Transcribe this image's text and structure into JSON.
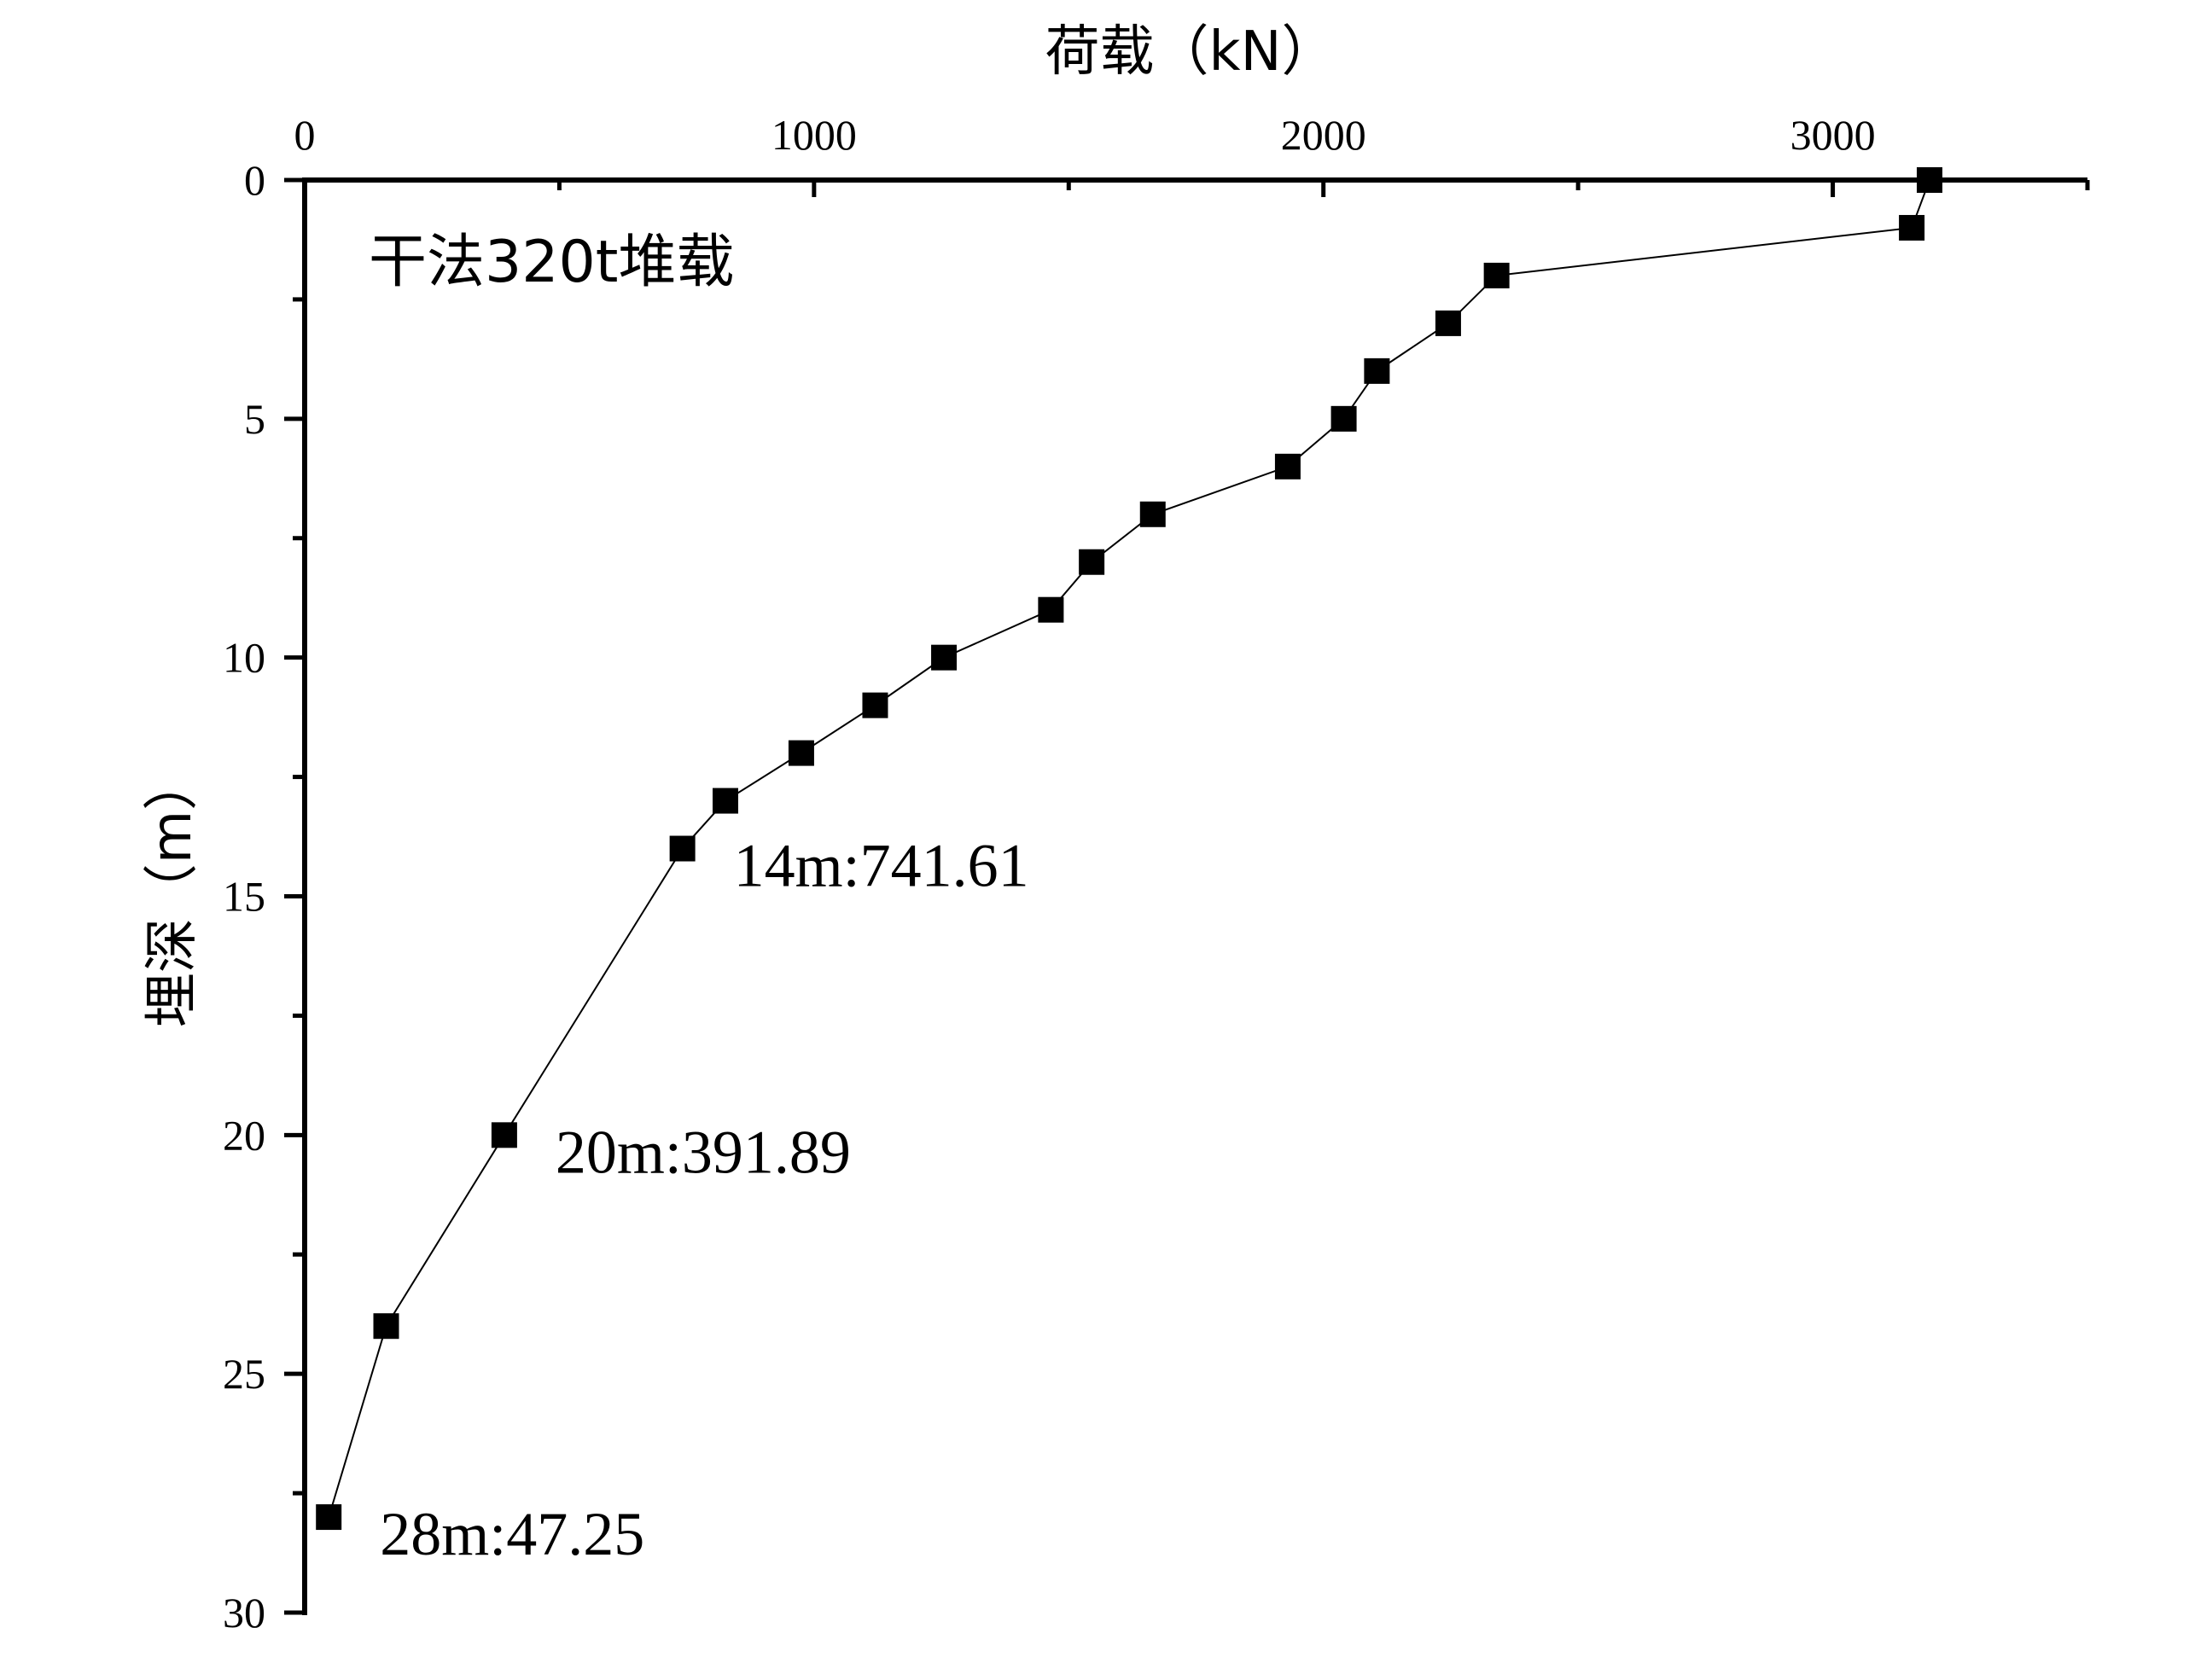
{
  "chart_data": {
    "type": "line",
    "title": "",
    "label": "干法320t堆载",
    "xlabel": "荷载（kN）",
    "ylabel": "埋深（m）",
    "xlim": [
      0,
      3500
    ],
    "ylim": [
      0,
      30
    ],
    "y_inverted": true,
    "x_axis_position": "top",
    "grid": false,
    "legend": "none",
    "x_ticks": [
      0,
      1000,
      2000,
      3000
    ],
    "y_ticks": [
      0,
      5,
      10,
      15,
      20,
      25,
      30
    ],
    "marker": "square",
    "color": "#000000",
    "series": [
      {
        "points": [
          {
            "x": 3190,
            "y": 0
          },
          {
            "x": 3155,
            "y": 1
          },
          {
            "x": 2340,
            "y": 2
          },
          {
            "x": 2245,
            "y": 3
          },
          {
            "x": 2105,
            "y": 4
          },
          {
            "x": 2040,
            "y": 5
          },
          {
            "x": 1930,
            "y": 6
          },
          {
            "x": 1665,
            "y": 7
          },
          {
            "x": 1545,
            "y": 8
          },
          {
            "x": 1465,
            "y": 9
          },
          {
            "x": 1255,
            "y": 10
          },
          {
            "x": 1120,
            "y": 11
          },
          {
            "x": 975,
            "y": 12
          },
          {
            "x": 826,
            "y": 13
          },
          {
            "x": 741.61,
            "y": 14
          },
          {
            "x": 391.89,
            "y": 20
          },
          {
            "x": 160,
            "y": 24
          },
          {
            "x": 47.25,
            "y": 28
          }
        ]
      }
    ],
    "annotations": [
      {
        "text": "14m:741.61",
        "x": 741.61,
        "y": 14
      },
      {
        "text": "20m:391.89",
        "x": 391.89,
        "y": 20
      },
      {
        "text": "28m:47.25",
        "x": 47.25,
        "y": 28
      }
    ]
  }
}
